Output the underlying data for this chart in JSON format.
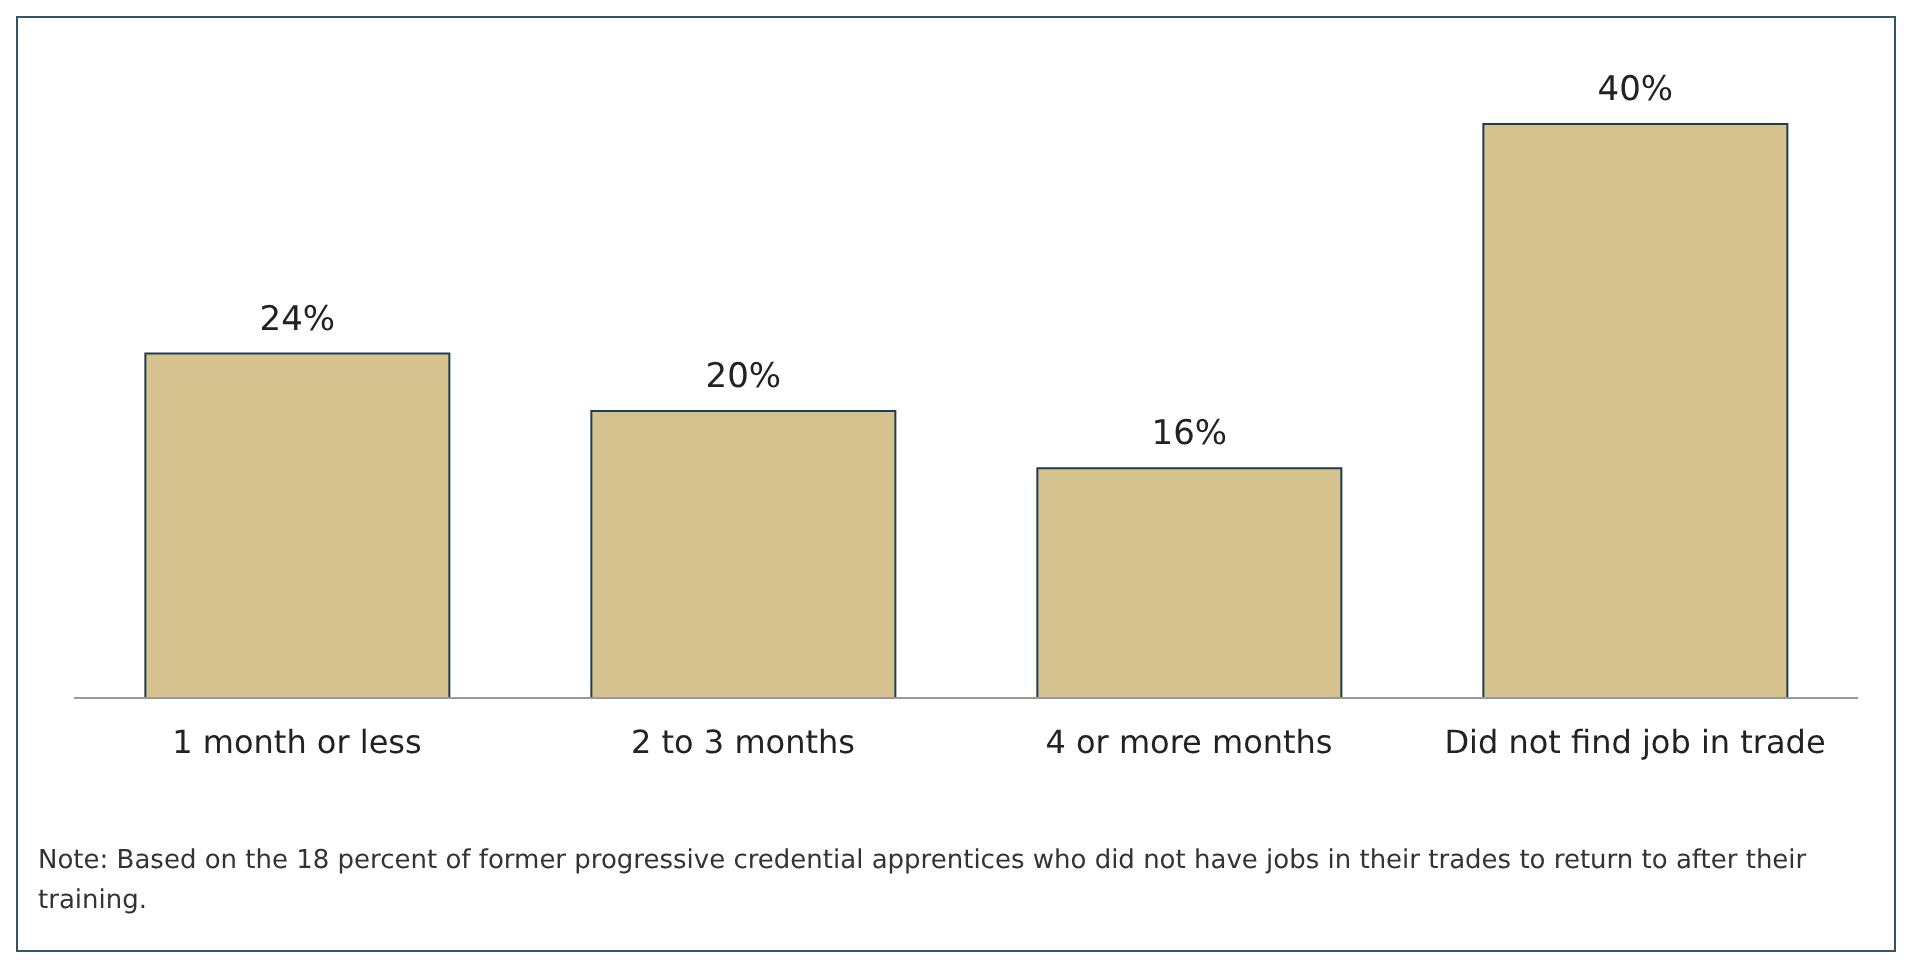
{
  "chart_data": {
    "type": "bar",
    "categories": [
      "1 month or less",
      "2 to 3 months",
      "4 or more months",
      "Did not find job in trade"
    ],
    "values": [
      24,
      20,
      16,
      40
    ],
    "value_labels": [
      "24%",
      "20%",
      "16%",
      "40%"
    ],
    "color": "#d5c28e",
    "grid": false,
    "legend": false,
    "annotations": [
      "Note: Based on the 18 percent of former progressive credential apprentices who did not have jobs in their trades to return to after their training."
    ]
  }
}
